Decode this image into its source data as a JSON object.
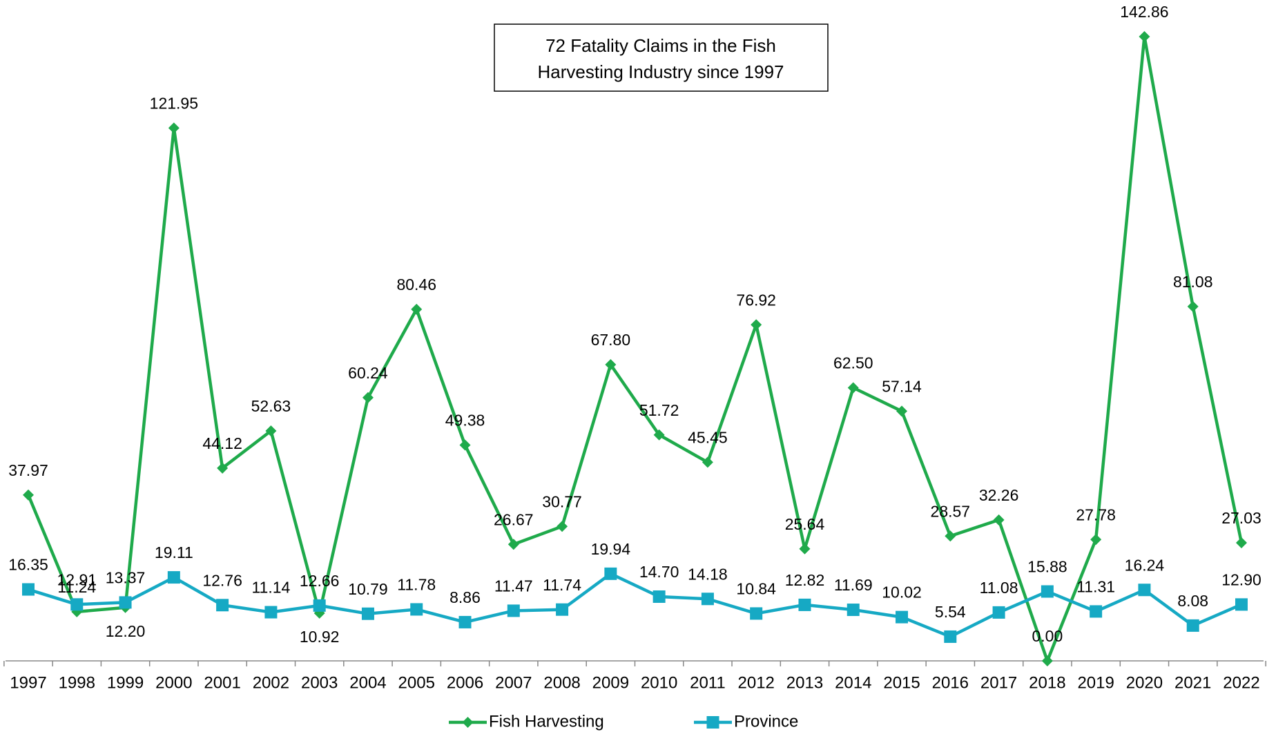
{
  "chart_data": {
    "type": "line",
    "title": "72 Fatality Claims in the Fish Harvesting Industry since 1997",
    "categories": [
      "1997",
      "1998",
      "1999",
      "2000",
      "2001",
      "2002",
      "2003",
      "2004",
      "2005",
      "2006",
      "2007",
      "2008",
      "2009",
      "2010",
      "2011",
      "2012",
      "2013",
      "2014",
      "2015",
      "2016",
      "2017",
      "2018",
      "2019",
      "2020",
      "2021",
      "2022"
    ],
    "series": [
      {
        "name": "Fish Harvesting",
        "color": "#1faa4b",
        "marker": "diamond",
        "values": [
          37.97,
          11.24,
          12.2,
          121.95,
          44.12,
          52.63,
          10.92,
          60.24,
          80.46,
          49.38,
          26.67,
          30.77,
          67.8,
          51.72,
          45.45,
          76.92,
          25.64,
          62.5,
          57.14,
          28.57,
          32.26,
          0.0,
          27.78,
          142.86,
          81.08,
          27.03
        ],
        "value_labels": [
          "37.97",
          "11.24",
          "12.20",
          "121.95",
          "44.12",
          "52.63",
          "10.92",
          "60.24",
          "80.46",
          "49.38",
          "26.67",
          "30.77",
          "67.80",
          "51.72",
          "45.45",
          "76.92",
          "25.64",
          "62.50",
          "57.14",
          "28.57",
          "32.26",
          "0.00",
          "27.78",
          "142.86",
          "81.08",
          "27.03"
        ]
      },
      {
        "name": "Province",
        "color": "#16a9c4",
        "marker": "square",
        "values": [
          16.35,
          12.91,
          13.37,
          19.11,
          12.76,
          11.14,
          12.66,
          10.79,
          11.78,
          8.86,
          11.47,
          11.74,
          19.94,
          14.7,
          14.18,
          10.84,
          12.82,
          11.69,
          10.02,
          5.54,
          11.08,
          15.88,
          11.31,
          16.24,
          8.08,
          12.9
        ],
        "value_labels": [
          "16.35",
          "12.91",
          "13.37",
          "19.11",
          "12.76",
          "11.14",
          "12.66",
          "10.79",
          "11.78",
          "8.86",
          "11.47",
          "11.74",
          "19.94",
          "14.70",
          "14.18",
          "10.84",
          "12.82",
          "11.69",
          "10.02",
          "5.54",
          "11.08",
          "15.88",
          "11.31",
          "16.24",
          "8.08",
          "12.90"
        ]
      }
    ],
    "legend": "bottom"
  }
}
